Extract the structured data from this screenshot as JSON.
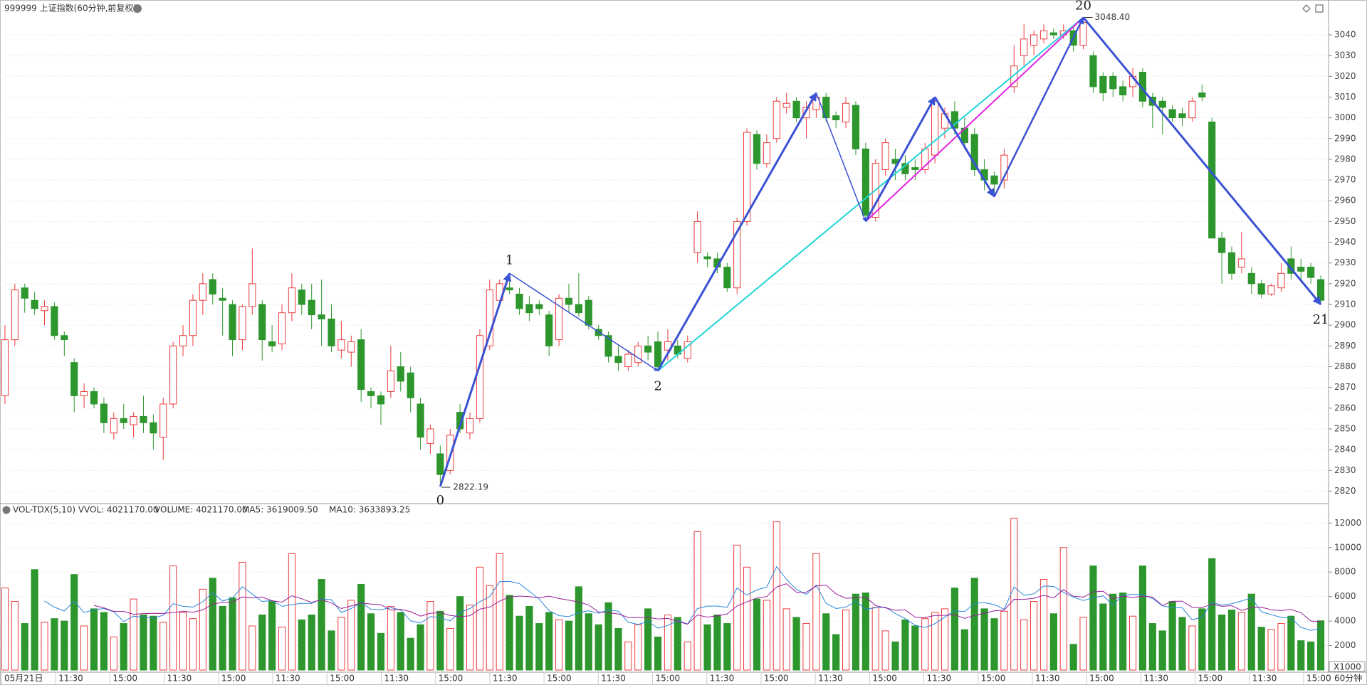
{
  "chart_data": {
    "type": "candlestick",
    "title": "999999 上证指数(60分钟,前复权)",
    "up_color": "#ec3b3b",
    "down_color": "#2d962d",
    "ylim": [
      2815,
      3052
    ],
    "yticks": [
      2820,
      2830,
      2840,
      2850,
      2860,
      2870,
      2880,
      2890,
      2900,
      2910,
      2920,
      2930,
      2940,
      2950,
      2960,
      2970,
      2980,
      2990,
      3000,
      3010,
      3020,
      3030,
      3040
    ],
    "grid": true,
    "ohlc": [
      [
        2866,
        2900,
        2862,
        2893
      ],
      [
        2893,
        2920,
        2890,
        2917
      ],
      [
        2918,
        2920,
        2906,
        2913
      ],
      [
        2912,
        2916,
        2905,
        2908
      ],
      [
        2907,
        2912,
        2900,
        2909
      ],
      [
        2909,
        2911,
        2893,
        2895
      ],
      [
        2895,
        2897,
        2885,
        2893
      ],
      [
        2882,
        2884,
        2858,
        2866
      ],
      [
        2866,
        2872,
        2860,
        2868
      ],
      [
        2868,
        2870,
        2860,
        2862
      ],
      [
        2862,
        2865,
        2848,
        2853
      ],
      [
        2848,
        2858,
        2845,
        2855
      ],
      [
        2855,
        2862,
        2850,
        2853
      ],
      [
        2852,
        2858,
        2846,
        2856
      ],
      [
        2856,
        2866,
        2848,
        2853
      ],
      [
        2853,
        2857,
        2840,
        2848
      ],
      [
        2846,
        2865,
        2835,
        2862
      ],
      [
        2862,
        2892,
        2860,
        2890
      ],
      [
        2890,
        2900,
        2885,
        2895
      ],
      [
        2895,
        2915,
        2890,
        2912
      ],
      [
        2912,
        2925,
        2905,
        2920
      ],
      [
        2922,
        2925,
        2910,
        2915
      ],
      [
        2913,
        2918,
        2895,
        2912
      ],
      [
        2910,
        2912,
        2885,
        2893
      ],
      [
        2893,
        2910,
        2888,
        2909
      ],
      [
        2909,
        2937,
        2905,
        2920
      ],
      [
        2910,
        2912,
        2883,
        2893
      ],
      [
        2892,
        2900,
        2887,
        2890
      ],
      [
        2891,
        2910,
        2888,
        2906
      ],
      [
        2906,
        2925,
        2902,
        2918
      ],
      [
        2917,
        2920,
        2905,
        2910
      ],
      [
        2912,
        2920,
        2898,
        2905
      ],
      [
        2905,
        2922,
        2890,
        2903
      ],
      [
        2903,
        2910,
        2887,
        2890
      ],
      [
        2888,
        2902,
        2884,
        2893
      ],
      [
        2887,
        2895,
        2880,
        2892
      ],
      [
        2893,
        2898,
        2863,
        2869
      ],
      [
        2868,
        2870,
        2860,
        2866
      ],
      [
        2866,
        2868,
        2852,
        2862
      ],
      [
        2868,
        2890,
        2865,
        2878
      ],
      [
        2880,
        2887,
        2868,
        2873
      ],
      [
        2877,
        2880,
        2858,
        2865
      ],
      [
        2862,
        2865,
        2840,
        2846
      ],
      [
        2843,
        2852,
        2838,
        2850
      ],
      [
        2838,
        2842,
        2822.19,
        2828
      ],
      [
        2830,
        2850,
        2828,
        2847
      ],
      [
        2858,
        2862,
        2848,
        2850
      ],
      [
        2848,
        2858,
        2845,
        2855
      ],
      [
        2855,
        2898,
        2853,
        2895
      ],
      [
        2890,
        2922,
        2888,
        2917
      ],
      [
        2912,
        2922,
        2910,
        2920
      ],
      [
        2918,
        2925,
        2915,
        2917
      ],
      [
        2915,
        2918,
        2905,
        2908
      ],
      [
        2910,
        2914,
        2902,
        2906
      ],
      [
        2910,
        2912,
        2905,
        2908
      ],
      [
        2905,
        2907,
        2885,
        2890
      ],
      [
        2893,
        2915,
        2890,
        2913
      ],
      [
        2913,
        2920,
        2906,
        2910
      ],
      [
        2910,
        2925,
        2904,
        2906
      ],
      [
        2912,
        2914,
        2898,
        2900
      ],
      [
        2898,
        2900,
        2893,
        2895
      ],
      [
        2895,
        2897,
        2882,
        2885
      ],
      [
        2885,
        2890,
        2878,
        2882
      ],
      [
        2880,
        2888,
        2878,
        2886
      ],
      [
        2882,
        2892,
        2880,
        2890
      ],
      [
        2890,
        2895,
        2883,
        2887
      ],
      [
        2892,
        2897,
        2878,
        2880
      ],
      [
        2888,
        2898,
        2883,
        2892
      ],
      [
        2890,
        2893,
        2884,
        2886
      ],
      [
        2884,
        2895,
        2882,
        2892
      ],
      [
        2935,
        2955,
        2930,
        2950
      ],
      [
        2933,
        2935,
        2928,
        2932
      ],
      [
        2932,
        2935,
        2925,
        2928
      ],
      [
        2928,
        2930,
        2916,
        2918
      ],
      [
        2918,
        2952,
        2915,
        2950
      ],
      [
        2950,
        2995,
        2948,
        2993
      ],
      [
        2992,
        2994,
        2975,
        2978
      ],
      [
        2978,
        2992,
        2976,
        2988
      ],
      [
        2990,
        3010,
        2988,
        3008
      ],
      [
        3005,
        3012,
        3002,
        3007
      ],
      [
        3008,
        3010,
        2998,
        3000
      ],
      [
        3000,
        3008,
        2990,
        3005
      ],
      [
        3004,
        3012,
        3000,
        3010
      ],
      [
        3010,
        3012,
        2998,
        3000
      ],
      [
        3001,
        3003,
        2995,
        2999
      ],
      [
        2998,
        3010,
        2995,
        3007
      ],
      [
        3006,
        3008,
        2982,
        2985
      ],
      [
        2985,
        2988,
        2950,
        2953
      ],
      [
        2952,
        2980,
        2950,
        2978
      ],
      [
        2975,
        2990,
        2972,
        2988
      ],
      [
        2980,
        2985,
        2970,
        2978
      ],
      [
        2978,
        2982,
        2970,
        2973
      ],
      [
        2976,
        2980,
        2970,
        2975
      ],
      [
        2975,
        2988,
        2973,
        2985
      ],
      [
        2982,
        3010,
        2978,
        3008
      ],
      [
        2995,
        3005,
        2990,
        3002
      ],
      [
        3003,
        3008,
        2992,
        2995
      ],
      [
        2995,
        3000,
        2985,
        2988
      ],
      [
        2992,
        2995,
        2972,
        2975
      ],
      [
        2975,
        2980,
        2965,
        2970
      ],
      [
        2972,
        2974,
        2962,
        2968
      ],
      [
        2970,
        2985,
        2966,
        2982
      ],
      [
        3015,
        3035,
        3012,
        3025
      ],
      [
        3030,
        3045,
        3025,
        3038
      ],
      [
        3035,
        3042,
        3030,
        3040
      ],
      [
        3038,
        3045,
        3036,
        3042
      ],
      [
        3041,
        3043,
        3038,
        3040
      ],
      [
        3040,
        3045,
        3038,
        3042
      ],
      [
        3042,
        3044,
        3032,
        3035
      ],
      [
        3035,
        3048.4,
        3033,
        3046
      ],
      [
        3030,
        3032,
        3012,
        3015
      ],
      [
        3020,
        3022,
        3008,
        3012
      ],
      [
        3020,
        3022,
        3010,
        3014
      ],
      [
        3015,
        3018,
        3008,
        3011
      ],
      [
        3015,
        3024,
        3010,
        3020
      ],
      [
        3022,
        3024,
        3005,
        3008
      ],
      [
        3010,
        3012,
        2995,
        3006
      ],
      [
        3008,
        3010,
        2992,
        3005
      ],
      [
        3004,
        3006,
        2998,
        3000
      ],
      [
        3002,
        3005,
        2996,
        3000
      ],
      [
        3000,
        3010,
        2998,
        3008
      ],
      [
        3012,
        3016,
        3008,
        3010
      ],
      [
        2998,
        3000,
        2942,
        2942
      ],
      [
        2942,
        2945,
        2920,
        2935
      ],
      [
        2935,
        2938,
        2922,
        2925
      ],
      [
        2928,
        2945,
        2925,
        2932
      ],
      [
        2925,
        2928,
        2915,
        2920
      ],
      [
        2920,
        2922,
        2913,
        2915
      ],
      [
        2915,
        2920,
        2914,
        2919
      ],
      [
        2918,
        2930,
        2916,
        2925
      ],
      [
        2932,
        2938,
        2922,
        2925
      ],
      [
        2928,
        2932,
        2922,
        2926
      ],
      [
        2928,
        2930,
        2920,
        2923
      ],
      [
        2922,
        2924,
        2910,
        2912
      ]
    ],
    "low_annotation": 2822.19,
    "high_annotation": {
      "value": 3048.4,
      "label": "3048.40"
    },
    "wave_labels": [
      "0",
      "1",
      "2",
      "20",
      "21"
    ],
    "volume": {
      "header": "VOL-TDX(5,10) VVOL: 4021170.00",
      "volume_text": "VOLUME: 4021170.00",
      "ma5_text": "MA5: 3619009.50",
      "ma10_text": "MA10: 3633893.25",
      "ma5_color": "#2a86d8",
      "ma10_color": "#9a1e9a",
      "unit": "X1000",
      "ylim": [
        0,
        12600
      ],
      "yticks": [
        2000,
        4000,
        6000,
        8000,
        10000,
        12000
      ],
      "values": [
        6700,
        5600,
        3800,
        8200,
        3900,
        4200,
        4000,
        7800,
        3600,
        5000,
        4700,
        2700,
        3800,
        5800,
        4500,
        4400,
        3900,
        8500,
        4700,
        4200,
        6600,
        7500,
        5200,
        5900,
        8800,
        3600,
        4500,
        5600,
        3500,
        9500,
        4100,
        4500,
        7400,
        3200,
        4300,
        5700,
        7000,
        4600,
        3000,
        5200,
        4700,
        2600,
        3700,
        5600,
        4800,
        3400,
        6000,
        5300,
        8400,
        6900,
        9500,
        6100,
        4400,
        5200,
        3800,
        4700,
        4100,
        4000,
        6800,
        4600,
        3700,
        5500,
        3400,
        2300,
        3700,
        5000,
        2700,
        4500,
        4300,
        2300,
        11300,
        3700,
        4500,
        3800,
        10200,
        8400,
        5800,
        5700,
        12100,
        5000,
        4300,
        3800,
        9500,
        4600,
        2900,
        4900,
        6200,
        6300,
        5100,
        3200,
        2300,
        4100,
        3600,
        4200,
        4700,
        5000,
        6700,
        3300,
        7500,
        5000,
        4200,
        4800,
        12400,
        4100,
        5600,
        7400,
        4600,
        10000,
        2100,
        4300,
        8500,
        5400,
        6200,
        6300,
        4400,
        8500,
        3800,
        3200,
        5600,
        4300,
        3600,
        5000,
        9100,
        4500,
        4900,
        4700,
        6200,
        3500,
        3300,
        3800,
        4400,
        2400,
        2300,
        4021.17
      ]
    },
    "time_labels": [
      "05月21日",
      "11:30",
      "15:00",
      "11:30",
      "15:00",
      "11:30",
      "15:00",
      "11:30",
      "15:00",
      "11:30",
      "15:00",
      "11:30",
      "15:00",
      "11:30",
      "15:00",
      "11:30",
      "15:00",
      "11:30",
      "15:00",
      "11:30",
      "15:00",
      "11:30",
      "15:00",
      "11:30",
      "15:00"
    ],
    "period": "60分钟"
  }
}
